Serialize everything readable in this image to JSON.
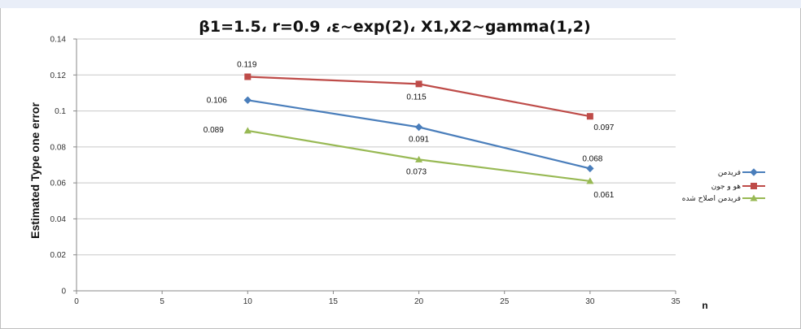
{
  "chart_data": {
    "type": "line",
    "title": "β1=1.5، r=0.9 ،ε~exp(2)، X1,X2~gamma(1,2)",
    "xlabel": "n",
    "ylabel": "Estimated Type one error",
    "xlim": [
      0,
      35
    ],
    "ylim": [
      0,
      0.14
    ],
    "x_ticks": [
      "0",
      "5",
      "10",
      "15",
      "20",
      "25",
      "30",
      "35"
    ],
    "y_ticks": [
      "0",
      "0.02",
      "0.04",
      "0.06",
      "0.08",
      "0.1",
      "0.12",
      "0.14"
    ],
    "grid": true,
    "legend_position": "right",
    "x": [
      10,
      20,
      30
    ],
    "series": [
      {
        "name": "فریدمن",
        "color": "#4a7ebb",
        "marker": "diamond",
        "values": [
          0.106,
          0.091,
          0.068
        ],
        "labels": [
          "0.106",
          "0.091",
          "0.068"
        ]
      },
      {
        "name": "هو و جون",
        "color": "#be4b48",
        "marker": "square",
        "values": [
          0.119,
          0.115,
          0.097
        ],
        "labels": [
          "0.119",
          "0.115",
          "0.097"
        ]
      },
      {
        "name": "فریدمن اصلاح شده",
        "color": "#98b954",
        "marker": "triangle",
        "values": [
          0.089,
          0.073,
          0.061
        ],
        "labels": [
          "0.089",
          "0.073",
          "0.061"
        ]
      }
    ]
  }
}
